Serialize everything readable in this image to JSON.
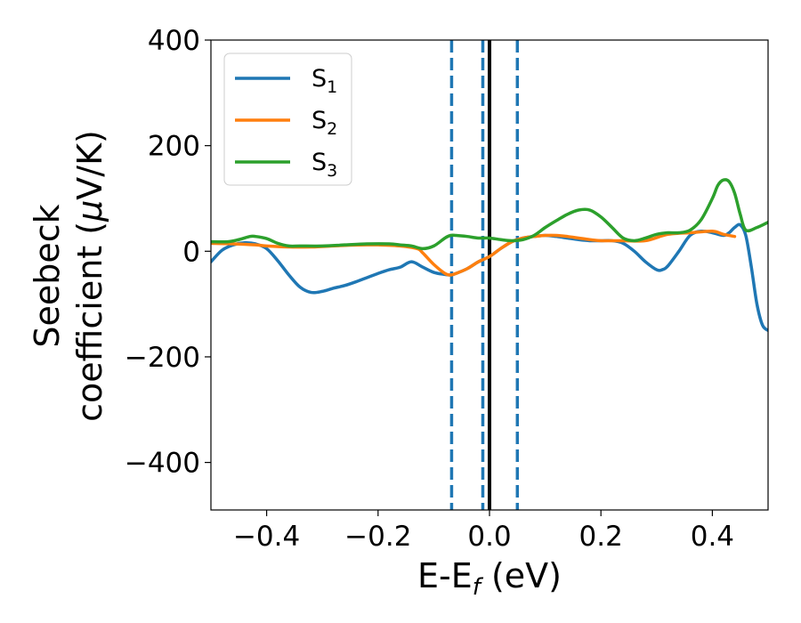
{
  "chart_data": {
    "type": "line",
    "xlabel": {
      "main": "E-E",
      "sub": "f",
      "tail": " (eV)"
    },
    "ylabel": {
      "line1": "Seebeck",
      "line2": "coefficient  (",
      "mu": "μ",
      "line2_tail": "V/K)"
    },
    "xlim": [
      -0.5,
      0.5
    ],
    "ylim": [
      -490,
      400
    ],
    "xticks": [
      -0.4,
      -0.2,
      0.0,
      0.2,
      0.4
    ],
    "xtick_labels": [
      "−0.4",
      "−0.2",
      "0.0",
      "0.2",
      "0.4"
    ],
    "yticks": [
      400,
      200,
      0,
      -200,
      -400
    ],
    "ytick_labels": [
      "400",
      "200",
      "0",
      "−200",
      "−400"
    ],
    "grid": false,
    "legend_position": "top-left",
    "vlines": [
      {
        "x": -0.068,
        "style": "dashed",
        "color": "#1f77b4"
      },
      {
        "x": -0.012,
        "style": "dashed",
        "color": "#1f77b4"
      },
      {
        "x": 0.05,
        "style": "dashed",
        "color": "#1f77b4"
      },
      {
        "x": 0.0,
        "style": "solid",
        "color": "#000000"
      }
    ],
    "series": [
      {
        "name": "S",
        "sub": "1",
        "color": "#1f77b4",
        "x": [
          -0.5,
          -0.48,
          -0.46,
          -0.44,
          -0.42,
          -0.4,
          -0.38,
          -0.36,
          -0.34,
          -0.32,
          -0.3,
          -0.28,
          -0.26,
          -0.24,
          -0.22,
          -0.2,
          -0.18,
          -0.16,
          -0.14,
          -0.12,
          -0.1,
          -0.08,
          -0.07,
          -0.06,
          -0.04,
          -0.02,
          0.0,
          0.02,
          0.04,
          0.06,
          0.08,
          0.1,
          0.12,
          0.14,
          0.16,
          0.18,
          0.2,
          0.22,
          0.24,
          0.26,
          0.28,
          0.3,
          0.31,
          0.32,
          0.34,
          0.36,
          0.38,
          0.4,
          0.42,
          0.43,
          0.44,
          0.45,
          0.46,
          0.47,
          0.48,
          0.49,
          0.5
        ],
        "y": [
          -20,
          2,
          12,
          16,
          14,
          5,
          -18,
          -45,
          -68,
          -78,
          -76,
          -70,
          -65,
          -58,
          -50,
          -42,
          -35,
          -30,
          -20,
          -30,
          -40,
          -44,
          -45,
          -42,
          -33,
          -20,
          -10,
          5,
          18,
          25,
          28,
          30,
          28,
          25,
          22,
          20,
          20,
          20,
          15,
          0,
          -20,
          -35,
          -35,
          -28,
          0,
          30,
          38,
          35,
          30,
          35,
          45,
          50,
          30,
          -30,
          -100,
          -140,
          -150
        ]
      },
      {
        "name": "S",
        "sub": "2",
        "color": "#ff7f0e",
        "x": [
          -0.5,
          -0.46,
          -0.42,
          -0.4,
          -0.36,
          -0.32,
          -0.3,
          -0.26,
          -0.22,
          -0.2,
          -0.16,
          -0.13,
          -0.12,
          -0.1,
          -0.08,
          -0.07,
          -0.06,
          -0.04,
          -0.02,
          0.0,
          0.02,
          0.04,
          0.06,
          0.08,
          0.1,
          0.12,
          0.14,
          0.16,
          0.18,
          0.2,
          0.24,
          0.28,
          0.32,
          0.36,
          0.4,
          0.42,
          0.44
        ],
        "y": [
          15,
          14,
          12,
          10,
          8,
          8,
          9,
          11,
          12,
          12,
          10,
          5,
          -3,
          -25,
          -42,
          -45,
          -42,
          -33,
          -20,
          -10,
          5,
          18,
          25,
          28,
          30,
          30,
          28,
          25,
          22,
          20,
          20,
          20,
          32,
          35,
          38,
          32,
          28
        ]
      },
      {
        "name": "S",
        "sub": "3",
        "color": "#2ca02c",
        "x": [
          -0.5,
          -0.47,
          -0.45,
          -0.43,
          -0.42,
          -0.4,
          -0.38,
          -0.36,
          -0.34,
          -0.3,
          -0.26,
          -0.22,
          -0.18,
          -0.16,
          -0.14,
          -0.12,
          -0.1,
          -0.08,
          -0.07,
          -0.06,
          -0.04,
          -0.02,
          0.0,
          0.02,
          0.04,
          0.06,
          0.08,
          0.1,
          0.12,
          0.14,
          0.16,
          0.18,
          0.2,
          0.22,
          0.24,
          0.26,
          0.28,
          0.3,
          0.32,
          0.34,
          0.36,
          0.38,
          0.4,
          0.41,
          0.42,
          0.43,
          0.44,
          0.45,
          0.46,
          0.48,
          0.5
        ],
        "y": [
          18,
          18,
          22,
          28,
          28,
          24,
          15,
          10,
          10,
          10,
          12,
          14,
          14,
          12,
          10,
          5,
          10,
          25,
          30,
          30,
          28,
          25,
          25,
          22,
          20,
          22,
          30,
          45,
          58,
          70,
          78,
          78,
          65,
          45,
          25,
          20,
          25,
          32,
          35,
          35,
          40,
          60,
          100,
          125,
          135,
          132,
          110,
          70,
          40,
          45,
          55
        ]
      }
    ]
  }
}
